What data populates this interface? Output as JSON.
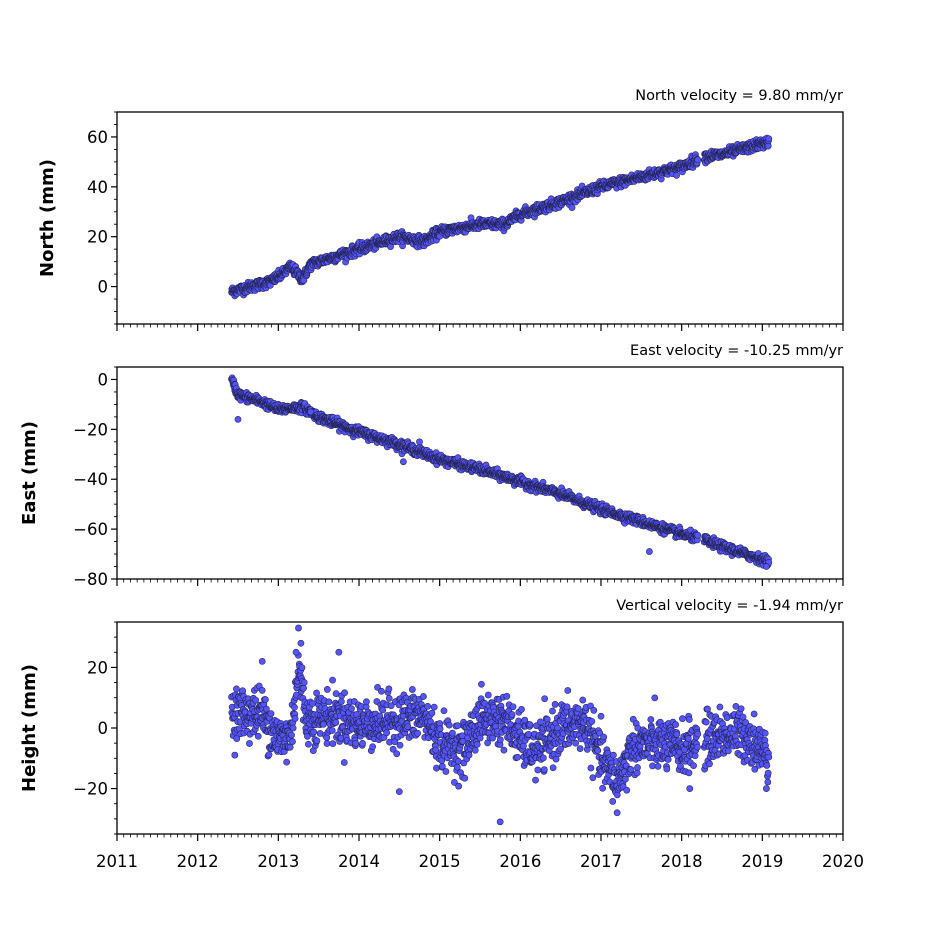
{
  "colors": {
    "marker_fill": "#5555ff",
    "marker_edge": "#22224a",
    "axes": "#000000",
    "background": "#ffffff"
  },
  "chart_data": [
    {
      "type": "scatter",
      "title": "North velocity = 9.80 mm/yr",
      "ylabel": "North (mm)",
      "xlabel": "",
      "xlim": [
        2011,
        2020
      ],
      "ylim": [
        -15,
        70
      ],
      "yticks": [
        0,
        20,
        40,
        60
      ],
      "ytick_labels": [
        "0",
        "20",
        "40",
        "60"
      ],
      "show_xtick_labels": false,
      "velocity_mm_per_yr": 9.8,
      "time_range": [
        2012.42,
        2019.08
      ],
      "anchors": [
        [
          2012.42,
          -2
        ],
        [
          2012.9,
          2
        ],
        [
          2013.05,
          5
        ],
        [
          2013.15,
          8
        ],
        [
          2013.3,
          3
        ],
        [
          2013.4,
          9
        ],
        [
          2013.7,
          12
        ],
        [
          2014.0,
          15
        ],
        [
          2014.5,
          20
        ],
        [
          2014.8,
          18
        ],
        [
          2015.0,
          22
        ],
        [
          2015.5,
          25
        ],
        [
          2015.8,
          25
        ],
        [
          2016.0,
          29
        ],
        [
          2016.5,
          34
        ],
        [
          2017.0,
          40
        ],
        [
          2017.5,
          44
        ],
        [
          2018.0,
          48
        ],
        [
          2018.25,
          52
        ],
        [
          2018.5,
          53
        ],
        [
          2019.08,
          58
        ]
      ],
      "scatter_sd": 1.0,
      "outliers": [],
      "gaps": [
        [
          2018.2,
          2018.28
        ]
      ]
    },
    {
      "type": "scatter",
      "title": "East velocity = -10.25 mm/yr",
      "ylabel": "East (mm)",
      "xlabel": "",
      "xlim": [
        2011,
        2020
      ],
      "ylim": [
        -80,
        5
      ],
      "yticks": [
        0,
        -20,
        -40,
        -60,
        -80
      ],
      "ytick_labels": [
        "0",
        "−20",
        "−40",
        "−60",
        "−80"
      ],
      "show_xtick_labels": false,
      "velocity_mm_per_yr": -10.25,
      "time_range": [
        2012.42,
        2019.08
      ],
      "anchors": [
        [
          2012.42,
          0
        ],
        [
          2012.5,
          -6
        ],
        [
          2012.8,
          -9
        ],
        [
          2013.0,
          -12
        ],
        [
          2013.3,
          -11
        ],
        [
          2013.5,
          -15
        ],
        [
          2014.0,
          -21
        ],
        [
          2014.5,
          -26
        ],
        [
          2015.0,
          -32
        ],
        [
          2015.5,
          -36
        ],
        [
          2016.0,
          -41
        ],
        [
          2016.5,
          -46
        ],
        [
          2017.0,
          -52
        ],
        [
          2017.5,
          -57
        ],
        [
          2018.0,
          -62
        ],
        [
          2018.25,
          -64
        ],
        [
          2018.5,
          -67
        ],
        [
          2019.08,
          -73
        ]
      ],
      "scatter_sd": 0.9,
      "outliers": [
        [
          2012.5,
          -16
        ],
        [
          2017.6,
          -69
        ],
        [
          2013.4,
          -13
        ],
        [
          2014.75,
          -25
        ],
        [
          2014.55,
          -33
        ],
        [
          2019.05,
          -75
        ]
      ],
      "gaps": [
        [
          2018.2,
          2018.28
        ]
      ]
    },
    {
      "type": "scatter",
      "title": "Vertical velocity = -1.94 mm/yr",
      "ylabel": "Height (mm)",
      "xlabel": "",
      "xlim": [
        2011,
        2020
      ],
      "ylim": [
        -35,
        35
      ],
      "yticks": [
        -20,
        0,
        20
      ],
      "ytick_labels": [
        "−20",
        "0",
        "20"
      ],
      "xticks": [
        2011,
        2012,
        2013,
        2014,
        2015,
        2016,
        2017,
        2018,
        2019,
        2020
      ],
      "xtick_labels": [
        "2011",
        "2012",
        "2013",
        "2014",
        "2015",
        "2016",
        "2017",
        "2018",
        "2019",
        "2020"
      ],
      "show_xtick_labels": true,
      "velocity_mm_per_yr": -1.94,
      "time_range": [
        2012.42,
        2019.08
      ],
      "anchors": [
        [
          2012.42,
          5
        ],
        [
          2012.8,
          5
        ],
        [
          2013.0,
          -4
        ],
        [
          2013.15,
          -3
        ],
        [
          2013.25,
          20
        ],
        [
          2013.35,
          3
        ],
        [
          2013.7,
          4
        ],
        [
          2014.0,
          1
        ],
        [
          2014.5,
          3
        ],
        [
          2014.8,
          4
        ],
        [
          2015.0,
          -5
        ],
        [
          2015.3,
          -7
        ],
        [
          2015.5,
          3
        ],
        [
          2015.8,
          3
        ],
        [
          2016.0,
          -4
        ],
        [
          2016.2,
          -8
        ],
        [
          2016.5,
          0
        ],
        [
          2016.8,
          2
        ],
        [
          2017.0,
          -10
        ],
        [
          2017.2,
          -18
        ],
        [
          2017.4,
          -6
        ],
        [
          2017.7,
          -5
        ],
        [
          2018.0,
          -7
        ],
        [
          2018.2,
          -5
        ],
        [
          2018.5,
          -2
        ],
        [
          2018.8,
          -2
        ],
        [
          2019.08,
          -10
        ]
      ],
      "scatter_sd": 4.2,
      "outliers": [
        [
          2013.25,
          33
        ],
        [
          2013.28,
          28
        ],
        [
          2013.22,
          25
        ],
        [
          2013.75,
          25
        ],
        [
          2015.75,
          -31
        ],
        [
          2014.5,
          -21
        ],
        [
          2017.2,
          -28
        ],
        [
          2012.8,
          22
        ],
        [
          2019.05,
          -20
        ],
        [
          2018.1,
          -20
        ]
      ],
      "gaps": [
        [
          2018.2,
          2018.28
        ]
      ]
    }
  ]
}
